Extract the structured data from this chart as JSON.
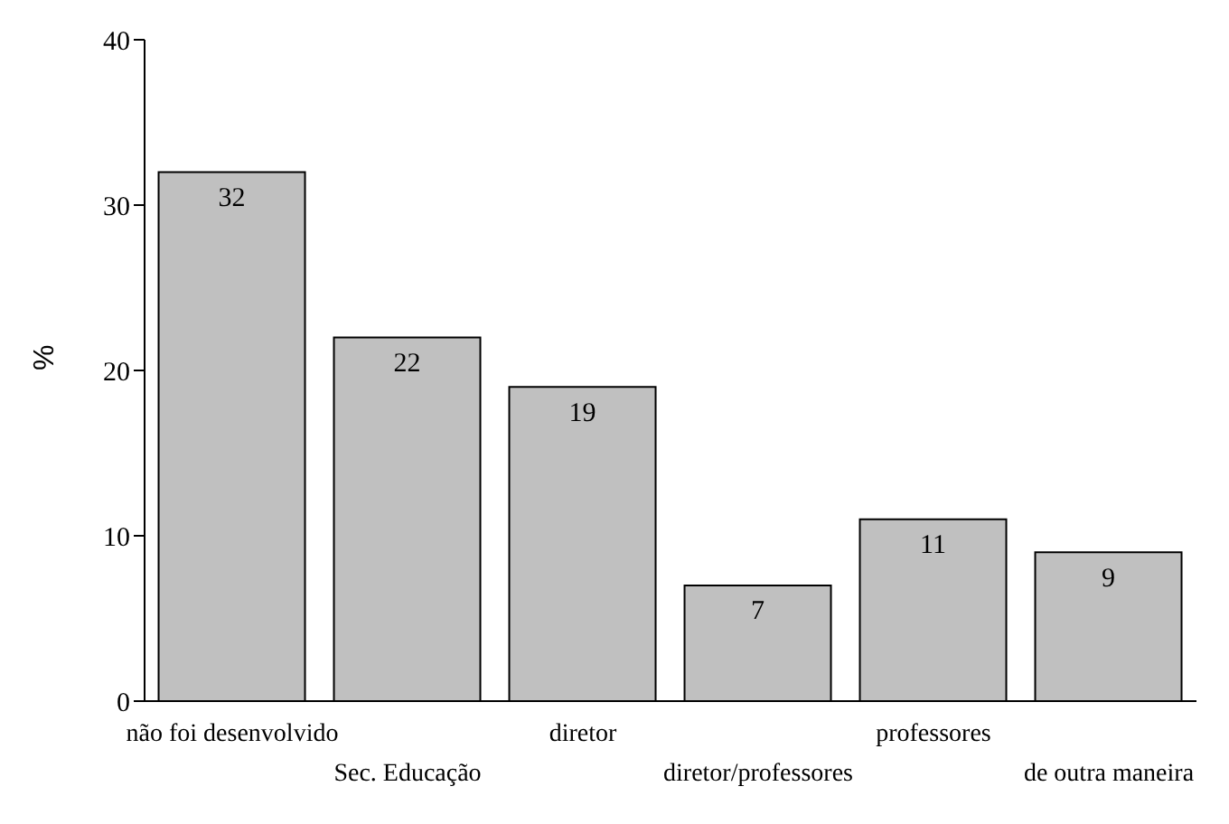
{
  "chart_data": {
    "type": "bar",
    "ylabel": "%",
    "categories": [
      "não foi desenvolvido",
      "Sec. Educação",
      "diretor",
      "diretor/professores",
      "professores",
      "de outra maneira"
    ],
    "values": [
      32,
      22,
      19,
      7,
      11,
      9
    ],
    "color": "#c0c0c0",
    "ylim": [
      0,
      40
    ],
    "yticks": [
      0,
      10,
      20,
      30,
      40
    ],
    "grid": false,
    "data_labels": true
  }
}
